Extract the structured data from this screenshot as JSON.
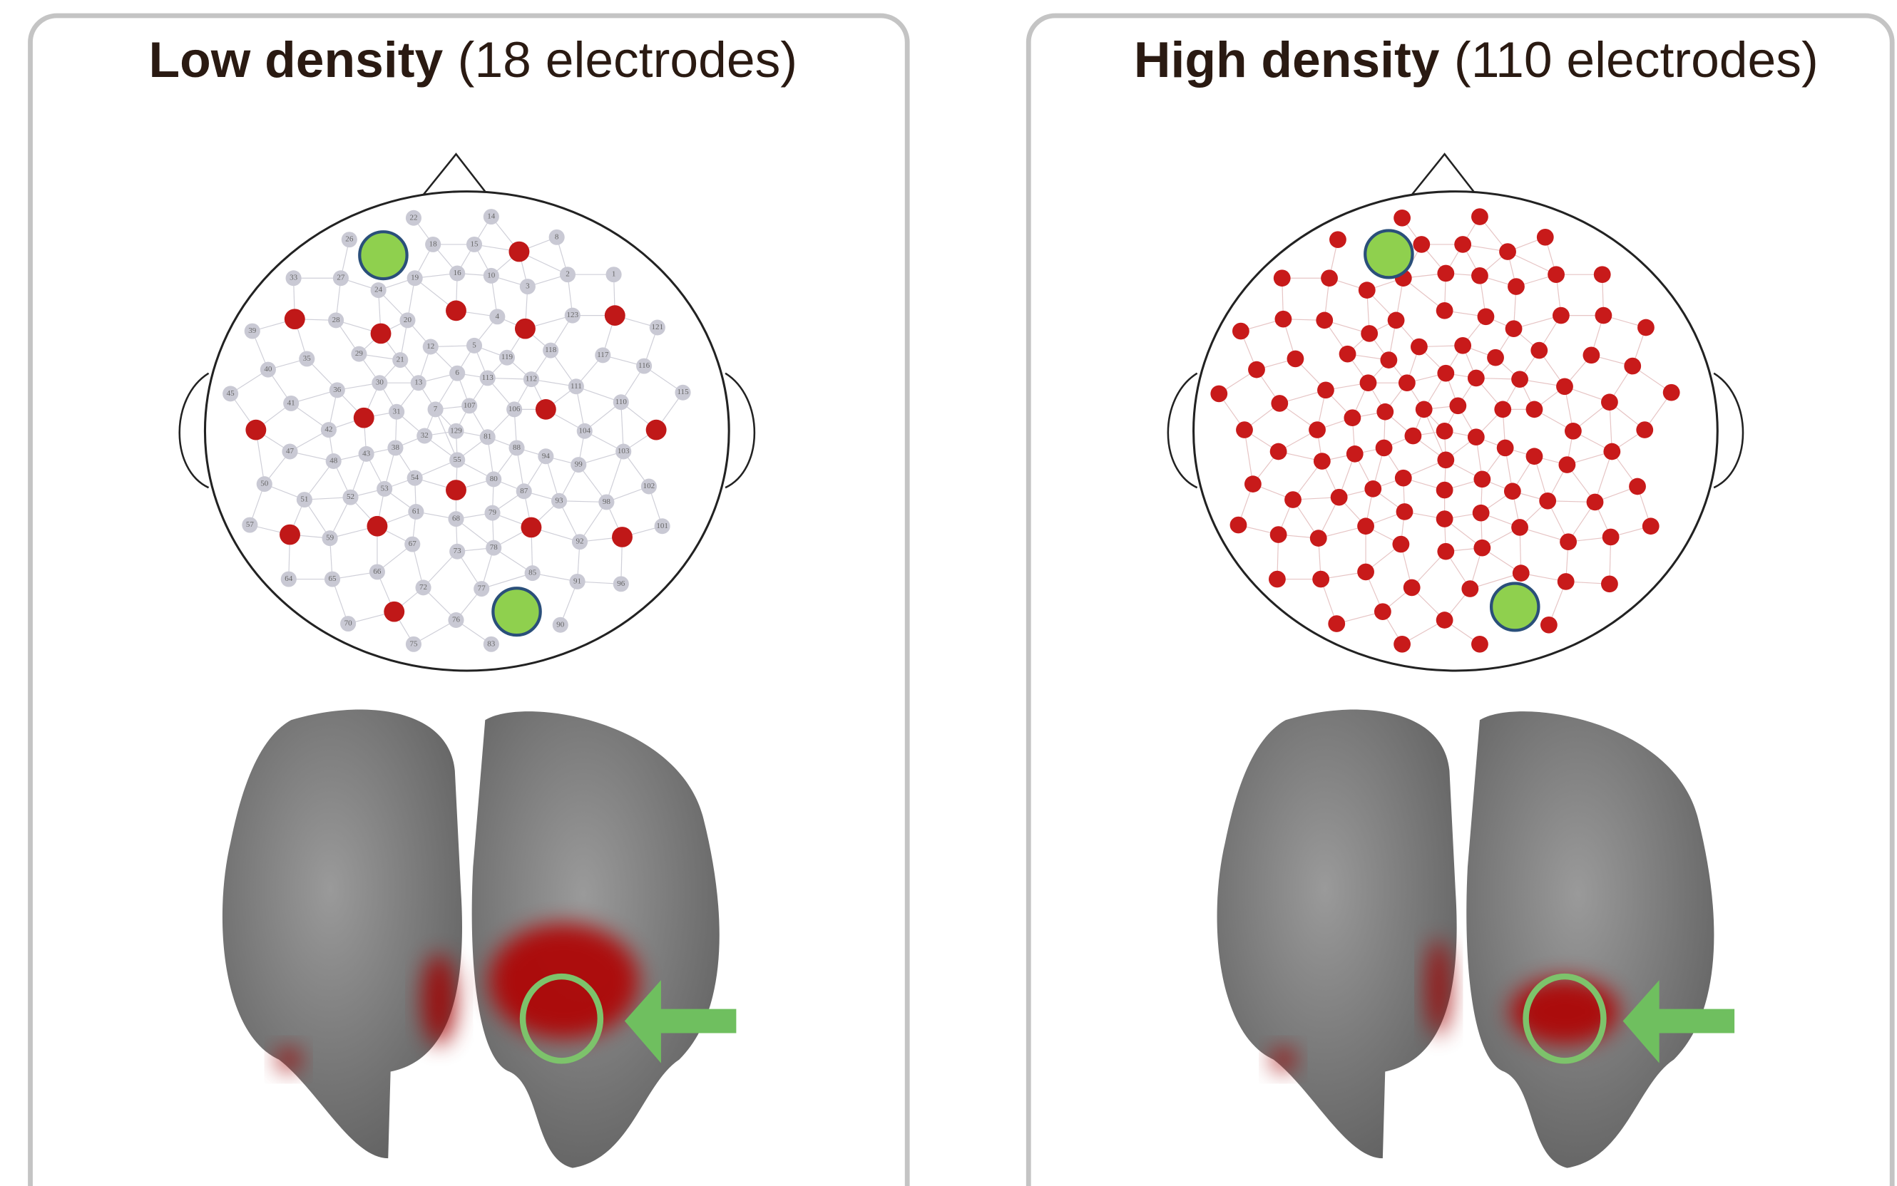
{
  "panels": [
    {
      "title_bold": "Low density",
      "title_rest": "(18 electrodes)"
    },
    {
      "title_bold": "High density",
      "title_rest": "(110 electrodes)"
    }
  ],
  "electrode_labels": [
    22,
    14,
    26,
    18,
    15,
    8,
    33,
    27,
    24,
    19,
    16,
    10,
    3,
    2,
    1,
    28,
    20,
    4,
    123,
    121,
    39,
    35,
    29,
    21,
    12,
    5,
    119,
    118,
    117,
    116,
    40,
    45,
    41,
    36,
    30,
    13,
    6,
    113,
    112,
    111,
    110,
    115,
    107,
    106,
    31,
    7,
    42,
    32,
    129,
    81,
    104,
    47,
    38,
    48,
    43,
    55,
    88,
    94,
    99,
    103,
    50,
    54,
    53,
    80,
    87,
    102,
    51,
    52,
    61,
    79,
    93,
    98,
    68,
    57,
    59,
    67,
    73,
    78,
    92,
    101,
    66,
    85,
    64,
    65,
    72,
    77,
    91,
    96,
    70,
    76,
    90,
    75,
    83
  ]
}
